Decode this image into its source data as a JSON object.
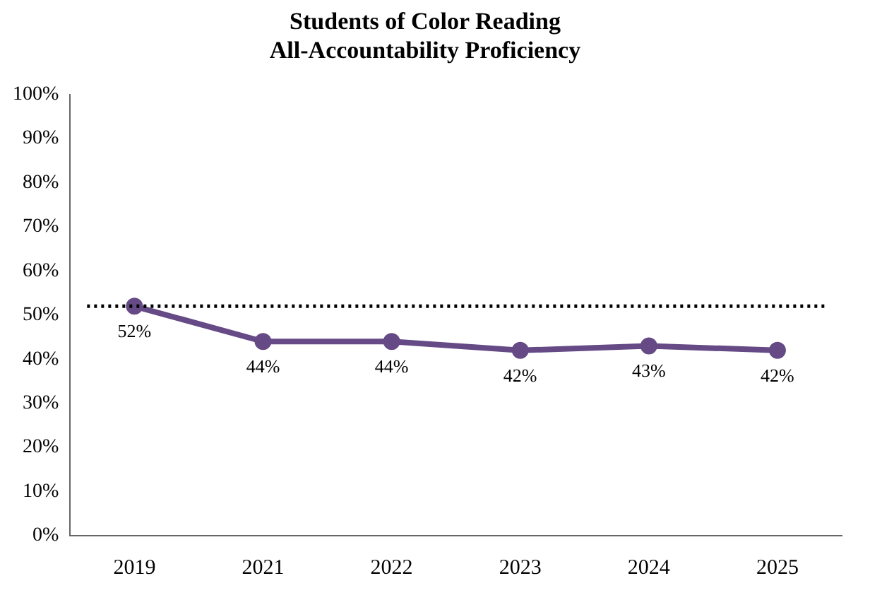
{
  "chart_data": {
    "type": "line",
    "title": "Students of Color Reading\nAll-Accountability Proficiency",
    "categories": [
      "2019",
      "2021",
      "2022",
      "2023",
      "2024",
      "2025"
    ],
    "series": [
      {
        "color": "#654a86",
        "values": [
          52,
          44,
          44,
          42,
          43,
          42
        ]
      }
    ],
    "value_labels": [
      "52%",
      "44%",
      "44%",
      "42%",
      "43%",
      "42%"
    ],
    "ylim": [
      0,
      100
    ],
    "yticks": [
      {
        "value": 0,
        "label": "0%"
      },
      {
        "value": 10,
        "label": "10%"
      },
      {
        "value": 20,
        "label": "20%"
      },
      {
        "value": 30,
        "label": "30%"
      },
      {
        "value": 40,
        "label": "40%"
      },
      {
        "value": 50,
        "label": "50%"
      },
      {
        "value": 60,
        "label": "60%"
      },
      {
        "value": 70,
        "label": "70%"
      },
      {
        "value": 80,
        "label": "80%"
      },
      {
        "value": 90,
        "label": "90%"
      },
      {
        "value": 100,
        "label": "100%"
      }
    ],
    "ref_lines": [
      {
        "axis": "y",
        "value": 52,
        "color": "#000000",
        "line_style": "dotted"
      }
    ],
    "grid": false,
    "legend": false,
    "marker": "circle",
    "line_style": "solid"
  }
}
